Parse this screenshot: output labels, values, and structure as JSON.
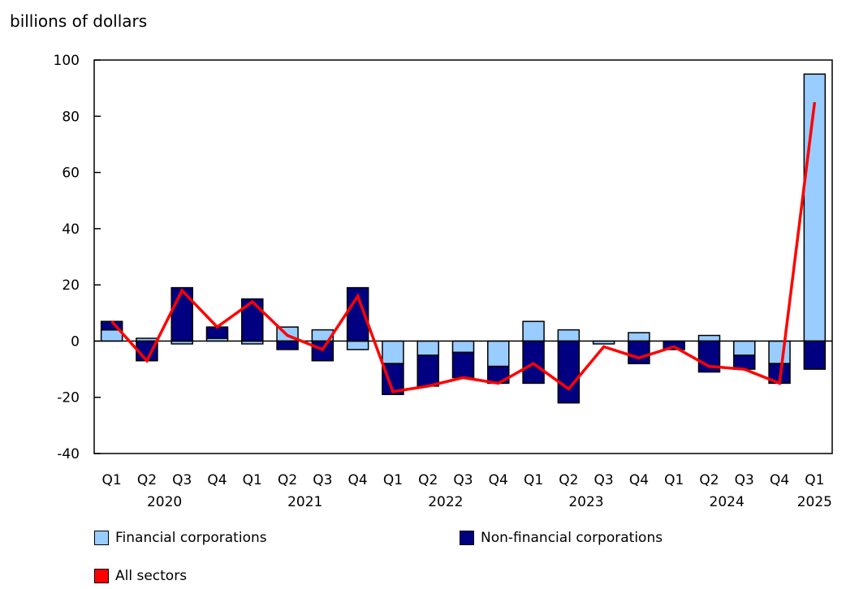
{
  "chart_data": {
    "type": "bar",
    "stacked": true,
    "ylabel": "billions of dollars",
    "ylim": [
      -40,
      100
    ],
    "yticks": [
      -40,
      -20,
      0,
      20,
      40,
      60,
      80,
      100
    ],
    "grid": false,
    "legend_position": "bottom",
    "categories": [
      "Q1",
      "Q2",
      "Q3",
      "Q4",
      "Q1",
      "Q2",
      "Q3",
      "Q4",
      "Q1",
      "Q2",
      "Q3",
      "Q4",
      "Q1",
      "Q2",
      "Q3",
      "Q4",
      "Q1",
      "Q2",
      "Q3",
      "Q4",
      "Q1"
    ],
    "years": [
      {
        "label": "2020",
        "start": 0,
        "end": 3
      },
      {
        "label": "2021",
        "start": 4,
        "end": 7
      },
      {
        "label": "2022",
        "start": 8,
        "end": 11
      },
      {
        "label": "2023",
        "start": 12,
        "end": 15
      },
      {
        "label": "2024",
        "start": 16,
        "end": 19
      },
      {
        "label": "2025",
        "start": 20,
        "end": 20
      }
    ],
    "series": [
      {
        "name": "Financial corporations",
        "type": "bar",
        "color": "#99ccff",
        "values": [
          4,
          1,
          -1,
          1,
          -1,
          5,
          4,
          -3,
          -8,
          -5,
          -4,
          -9,
          7,
          4,
          -1,
          3,
          0,
          2,
          -5,
          -8,
          95
        ]
      },
      {
        "name": "Non-financial corporations",
        "type": "bar",
        "color": "#000080",
        "values": [
          3,
          -7,
          19,
          4,
          15,
          -3,
          -7,
          19,
          -11,
          -11,
          -9,
          -6,
          -15,
          -22,
          0,
          -8,
          -3,
          -11,
          -5,
          -7,
          -10
        ]
      },
      {
        "name": "All sectors",
        "type": "line",
        "color": "#ff0000",
        "values": [
          7,
          -7,
          18,
          5,
          14,
          2,
          -3,
          16,
          -18,
          -16,
          -13,
          -15,
          -8,
          -17,
          -2,
          -6,
          -2,
          -9,
          -10,
          -15,
          85
        ]
      }
    ]
  }
}
